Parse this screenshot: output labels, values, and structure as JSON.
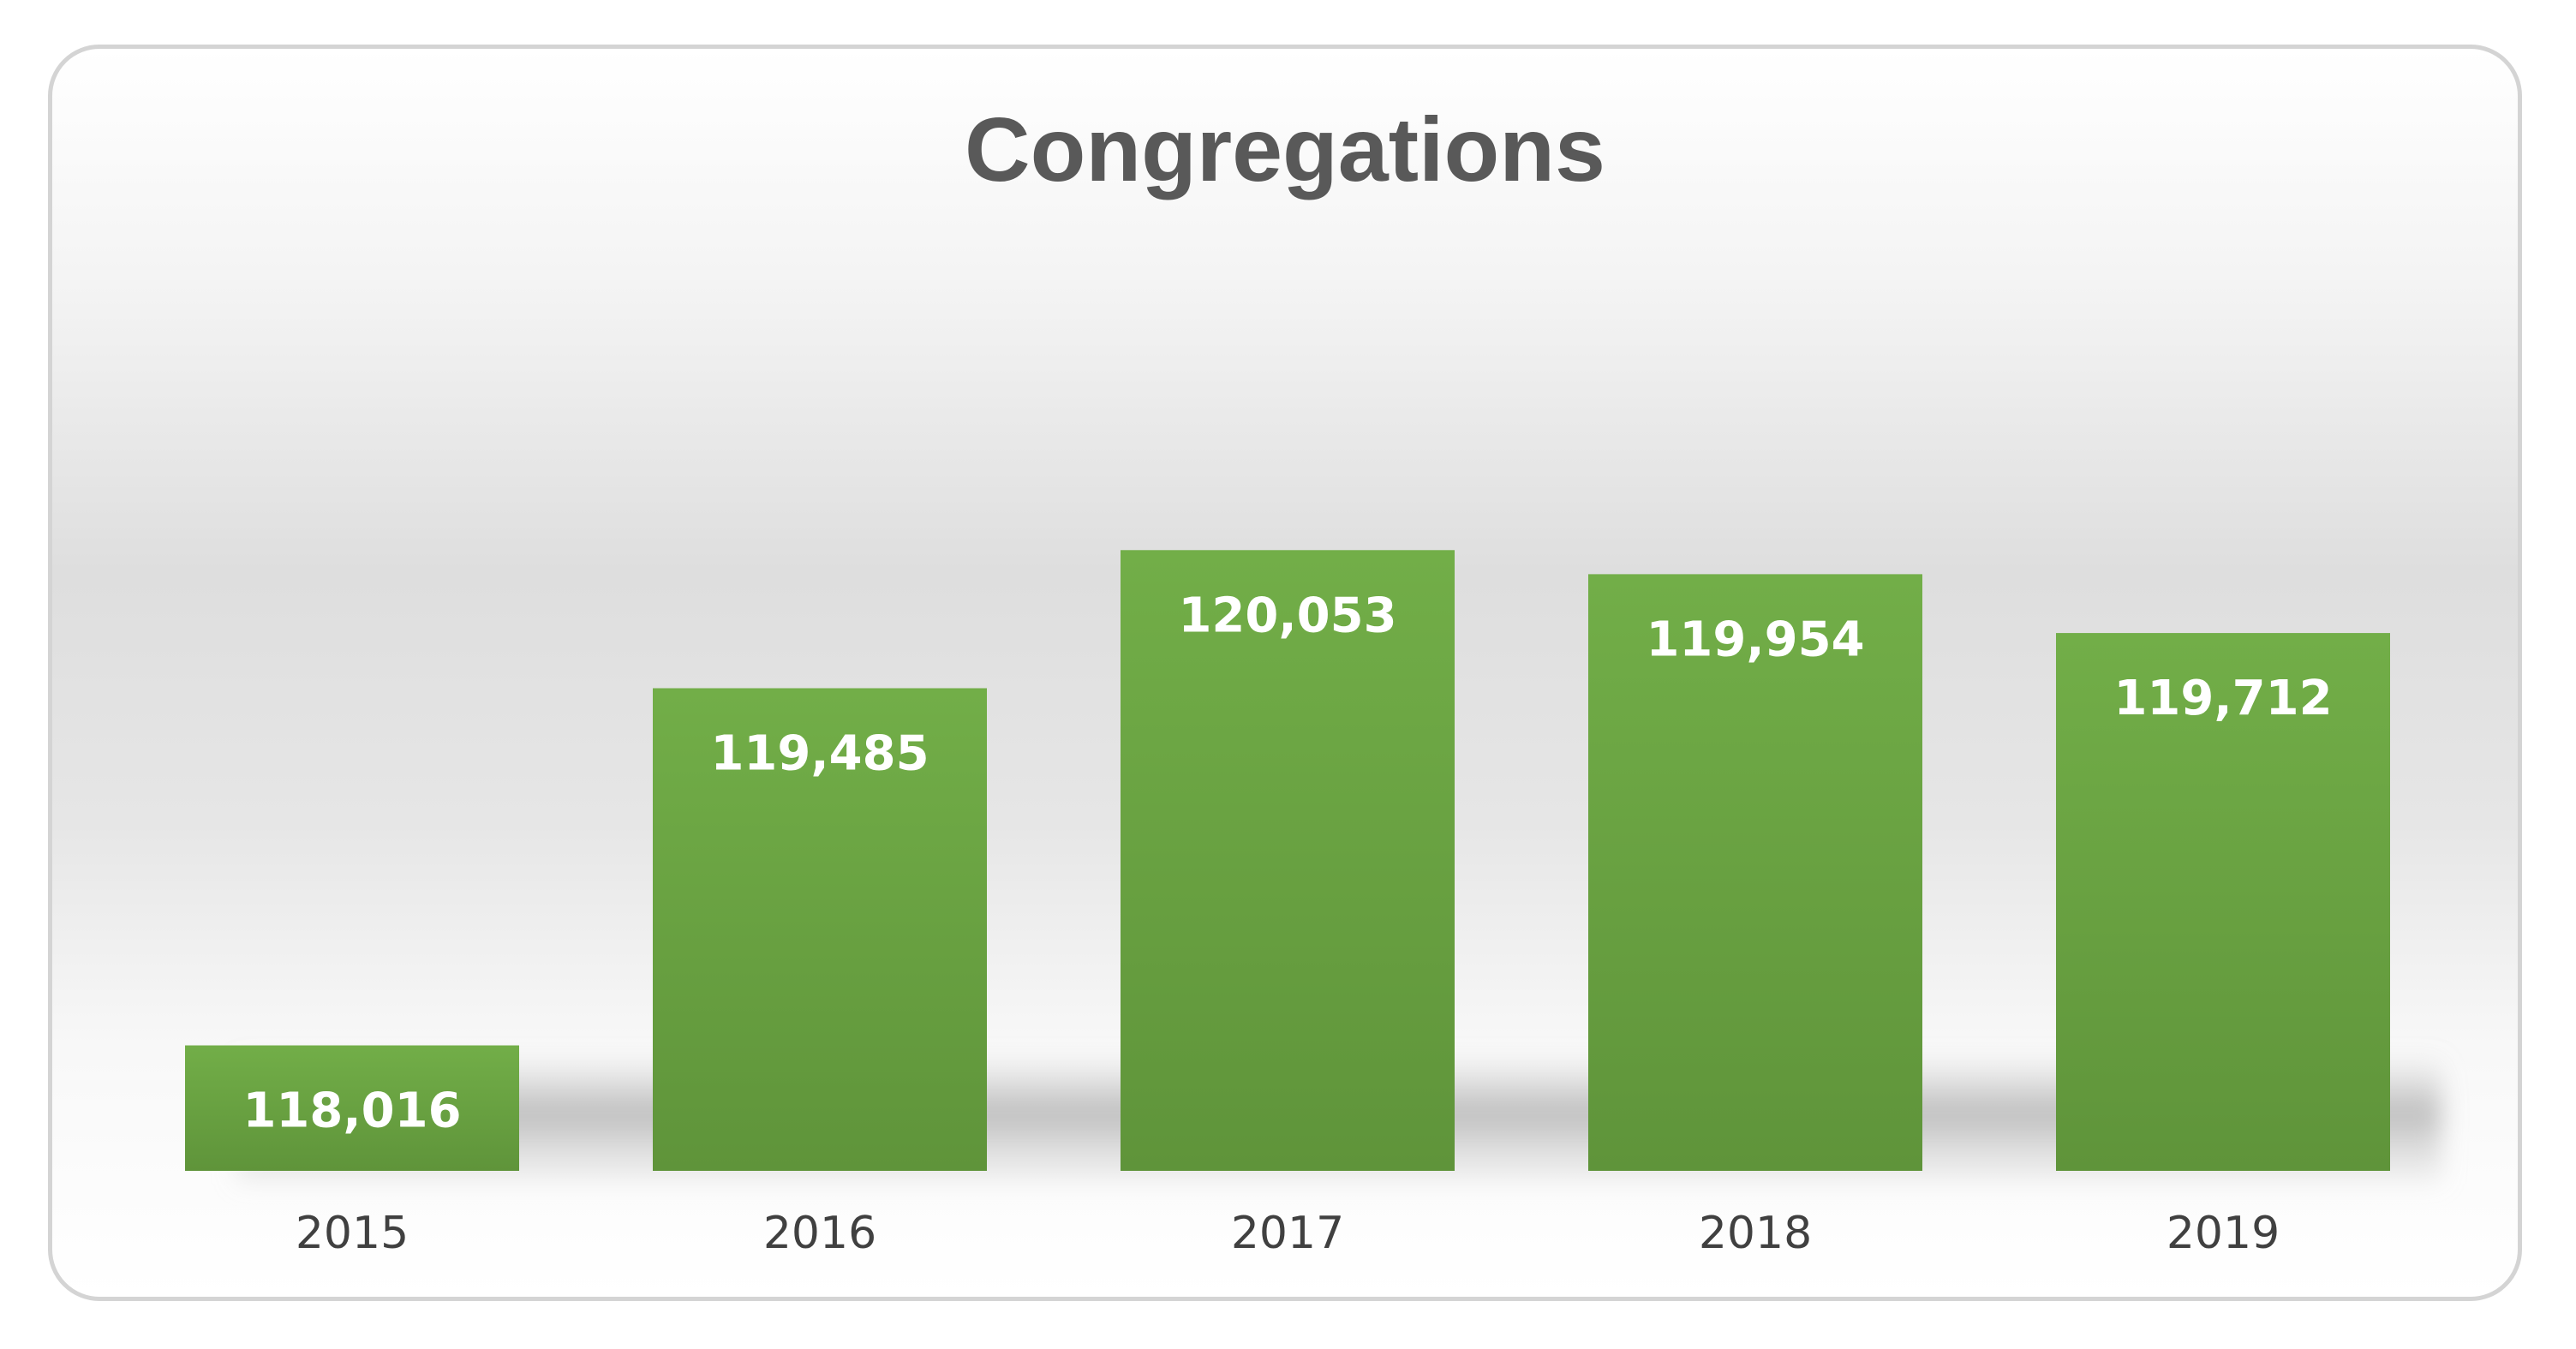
{
  "chart_data": {
    "type": "bar",
    "title": "Congregations",
    "categories": [
      "2015",
      "2016",
      "2017",
      "2018",
      "2019"
    ],
    "values": [
      118016,
      119485,
      120053,
      119954,
      119712
    ],
    "data_labels": [
      "118,016",
      "119,485",
      "120,053",
      "119,954",
      "119,712"
    ],
    "xlabel": "",
    "ylabel": "",
    "ylim": [
      117500,
      120600
    ],
    "grid": false,
    "legend": "none",
    "data_label_position": "inside-top"
  },
  "colors": {
    "bar_top": "#72ae48",
    "bar_bottom": "#5f943a",
    "data_label": "#ffffff",
    "category_label": "#404040",
    "title": "#595959",
    "frame_border": "#d4d4d4"
  }
}
